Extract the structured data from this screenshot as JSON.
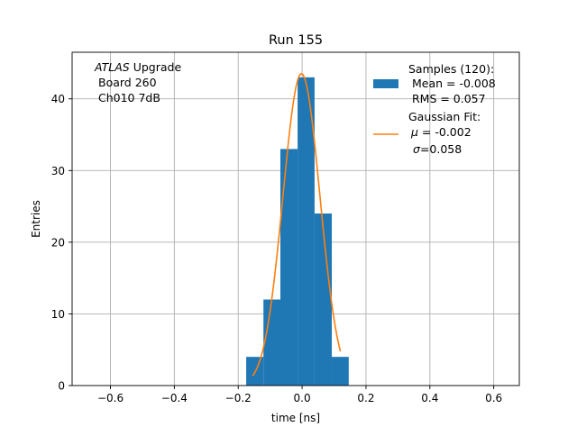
{
  "chart_data": {
    "type": "bar",
    "title": "Run 155",
    "xlabel": "time [ns]",
    "ylabel": "Entries",
    "xlim": [
      -0.72,
      0.68
    ],
    "ylim": [
      0,
      46.5
    ],
    "xticks": [
      -0.6,
      -0.4,
      -0.2,
      0.0,
      0.2,
      0.4,
      0.6
    ],
    "xtick_labels": [
      "−0.6",
      "−0.4",
      "−0.2",
      "0.0",
      "0.2",
      "0.4",
      "0.6"
    ],
    "yticks": [
      0,
      10,
      20,
      30,
      40
    ],
    "ytick_labels": [
      "0",
      "10",
      "20",
      "30",
      "40"
    ],
    "grid": true,
    "histogram": {
      "name": "Samples (120):",
      "color": "#1f77b4",
      "bin_edges": [
        -0.175,
        -0.121,
        -0.068,
        -0.014,
        0.039,
        0.093,
        0.146
      ],
      "counts": [
        4,
        12,
        33,
        43,
        24,
        4
      ]
    },
    "fit": {
      "name": "Gaussian Fit:",
      "color": "#ff7f0e",
      "mu": -0.002,
      "sigma": 0.058,
      "amplitude": 43.5,
      "x_range": [
        -0.155,
        0.12
      ]
    },
    "annotation": {
      "line1_italic": "ATLAS",
      "line1_rest": " Upgrade",
      "line2": "Board 260",
      "line3": "Ch010 7dB"
    },
    "legend": {
      "placement": "top-right",
      "hist_lines": [
        "Samples (120):",
        " Mean = -0.008",
        " RMS = 0.057"
      ],
      "fit_line1": "Gaussian Fit:",
      "fit_mu_sym": "μ",
      "fit_mu_rest": " = -0.002",
      "fit_sigma_sym": "σ",
      "fit_sigma_rest": "=0.058"
    }
  }
}
